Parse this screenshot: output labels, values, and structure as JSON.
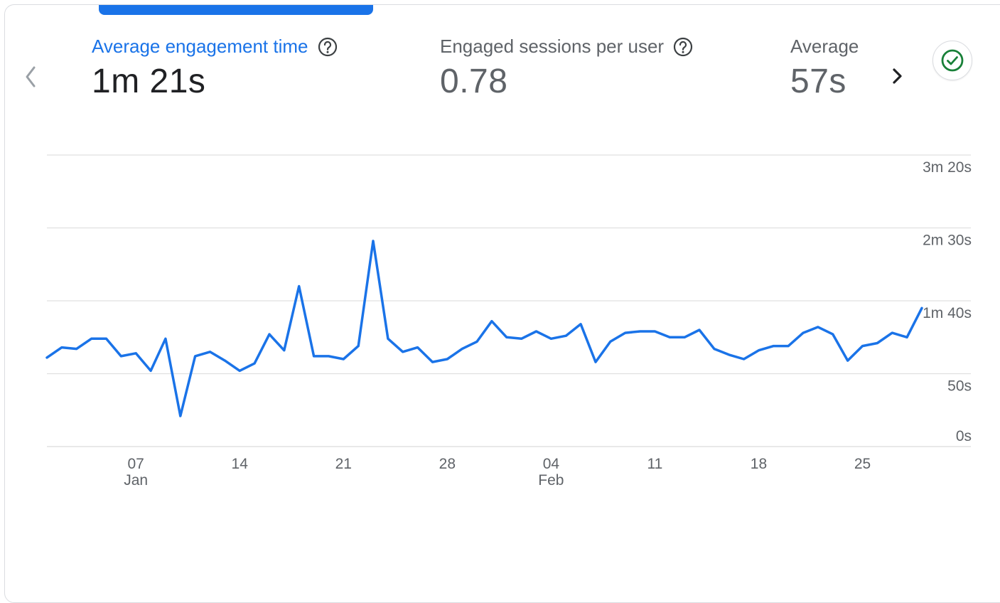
{
  "metrics": [
    {
      "label": "Average engagement time",
      "value": "1m 21s",
      "has_help": true,
      "active": true
    },
    {
      "label": "Engaged sessions per user",
      "value": "0.78",
      "has_help": true,
      "active": false
    },
    {
      "label": "Average",
      "value": "57s",
      "has_help": false,
      "active": false
    }
  ],
  "icons": {
    "prev": "chevron-left-icon",
    "next": "chevron-right-icon",
    "help": "help-circle-icon",
    "status": "check-circle-icon"
  },
  "colors": {
    "accent": "#1a73e8",
    "line": "#1a73e8",
    "status_green": "#188038",
    "grid": "#e0e0e0",
    "muted_text": "#5f6368"
  },
  "chart_data": {
    "type": "line",
    "title": "",
    "xlabel": "",
    "ylabel": "",
    "y_axis_position": "right",
    "grid": true,
    "y_ticks": [
      "0s",
      "50s",
      "1m 40s",
      "2m 30s",
      "3m 20s"
    ],
    "y_tick_values": [
      0,
      50,
      100,
      150,
      200
    ],
    "ylim": [
      0,
      200
    ],
    "x_tick_labels": [
      {
        "day": "07",
        "month": "Jan",
        "index": 6
      },
      {
        "day": "14",
        "month": "",
        "index": 13
      },
      {
        "day": "21",
        "month": "",
        "index": 20
      },
      {
        "day": "28",
        "month": "",
        "index": 27
      },
      {
        "day": "04",
        "month": "Feb",
        "index": 34
      },
      {
        "day": "11",
        "month": "",
        "index": 41
      },
      {
        "day": "18",
        "month": "",
        "index": 48
      },
      {
        "day": "25",
        "month": "",
        "index": 55
      }
    ],
    "series": [
      {
        "values": [
          61,
          68,
          67,
          74,
          74,
          62,
          64,
          52,
          74,
          21,
          62,
          65,
          59,
          52,
          57,
          77,
          66,
          110,
          62,
          62,
          60,
          69,
          141,
          74,
          65,
          68,
          58,
          60,
          67,
          72,
          86,
          75,
          74,
          79,
          74,
          76,
          84,
          58,
          72,
          78,
          79,
          79,
          75,
          75,
          80,
          67,
          63,
          60,
          66,
          69,
          69,
          78,
          82,
          77,
          59,
          69,
          71,
          78,
          75,
          95
        ]
      }
    ]
  }
}
